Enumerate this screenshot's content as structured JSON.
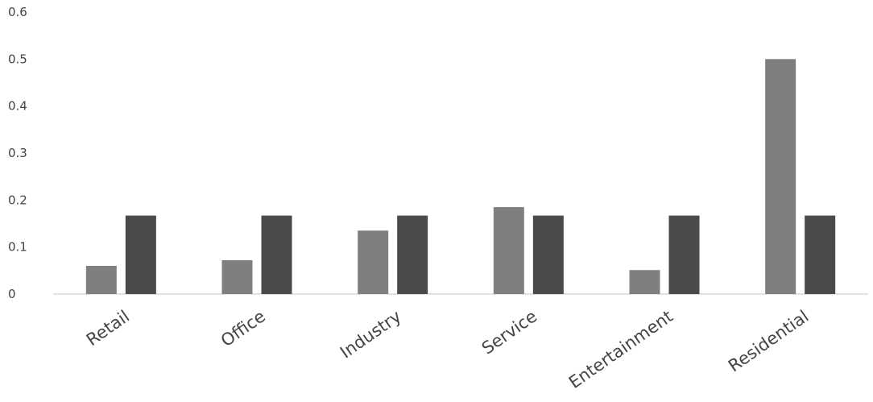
{
  "chart_data": {
    "type": "bar",
    "categories": [
      "Retail",
      "Office",
      "Industry",
      "Service",
      "Entertainment",
      "Residential"
    ],
    "series": [
      {
        "values": [
          0.06,
          0.072,
          0.135,
          0.185,
          0.051,
          0.5
        ]
      },
      {
        "values": [
          0.167,
          0.167,
          0.167,
          0.167,
          0.167,
          0.167
        ]
      }
    ],
    "y_ticks": [
      "0",
      "0.1",
      "0.2",
      "0.3",
      "0.4",
      "0.5",
      "0.6"
    ],
    "ylim": [
      0,
      0.6
    ],
    "grid": false,
    "legend": "none",
    "colors": {
      "series_1": "#7f7f7f",
      "series_2": "#4a4a4a",
      "axis": "#d9d9d9",
      "text": "#444444"
    }
  }
}
